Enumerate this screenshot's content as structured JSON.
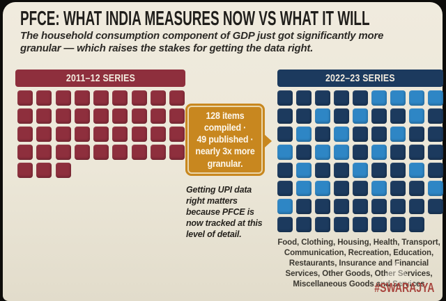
{
  "title": "PFCE: WHAT INDIA MEASURES NOW VS WHAT IT WILL",
  "subtitle": "The household consumption component of GDP just got significantly more granular — which raises the stakes for getting the data right.",
  "callout": {
    "lines": [
      "128 items",
      "compiled ·",
      "49 published ·",
      "nearly 3x more",
      "granular."
    ],
    "full_text": "128 items compiled · 49 published · nearly 3x more granular."
  },
  "note": "Getting UPI data right matters because PFCE is now tracked at this level of detail.",
  "right_caption": "Food, Clothing, Housing, Health, Transport, Communication, Recreation, Education, Restaurants, Insurance and Financial Services, Other Goods, Other Services, Miscellaneous Goods and Services",
  "footer": "#SWARAJYA",
  "colors": {
    "background_card": "#ece7d9",
    "page_border": "#0d0c0a",
    "maroon": "#8e2f3d",
    "navy": "#1c3a5e",
    "light_blue": "#2e86c5",
    "orange": "#c8871f",
    "note_text": "#26231e",
    "footer_red": "#a8453e"
  },
  "chart_data": [
    {
      "type": "heatmap",
      "subtype": "waffle-unit-chart",
      "title": "2011–12 SERIES",
      "columns": 9,
      "rows": [
        "MMMMMMMMM",
        "MMMMMMMMM",
        "MMMMMMMMM",
        "MMMMMMMMM",
        "MMM"
      ],
      "unit_count": 39,
      "legend": {
        "M": "item tracked in 2011-12 series"
      },
      "colors": {
        "M": "#8e2f3d"
      }
    },
    {
      "type": "heatmap",
      "subtype": "waffle-unit-chart",
      "title": "2022–23 SERIES",
      "columns": 9,
      "rows": [
        "DDDDDLLLL",
        "DDLDLDDLD",
        "DLDLDDLDD",
        "LDLLDLDDD",
        "DLDDLDDLD",
        "DLLDDLDDL",
        "LDDDDDDDD",
        "DDDDDDDD"
      ],
      "unit_count": 71,
      "dark_count": 49,
      "light_count": 22,
      "legend": {
        "D": "dark navy square",
        "L": "light blue square"
      },
      "colors": {
        "D": "#1c3a5e",
        "L": "#2e86c5"
      }
    }
  ]
}
